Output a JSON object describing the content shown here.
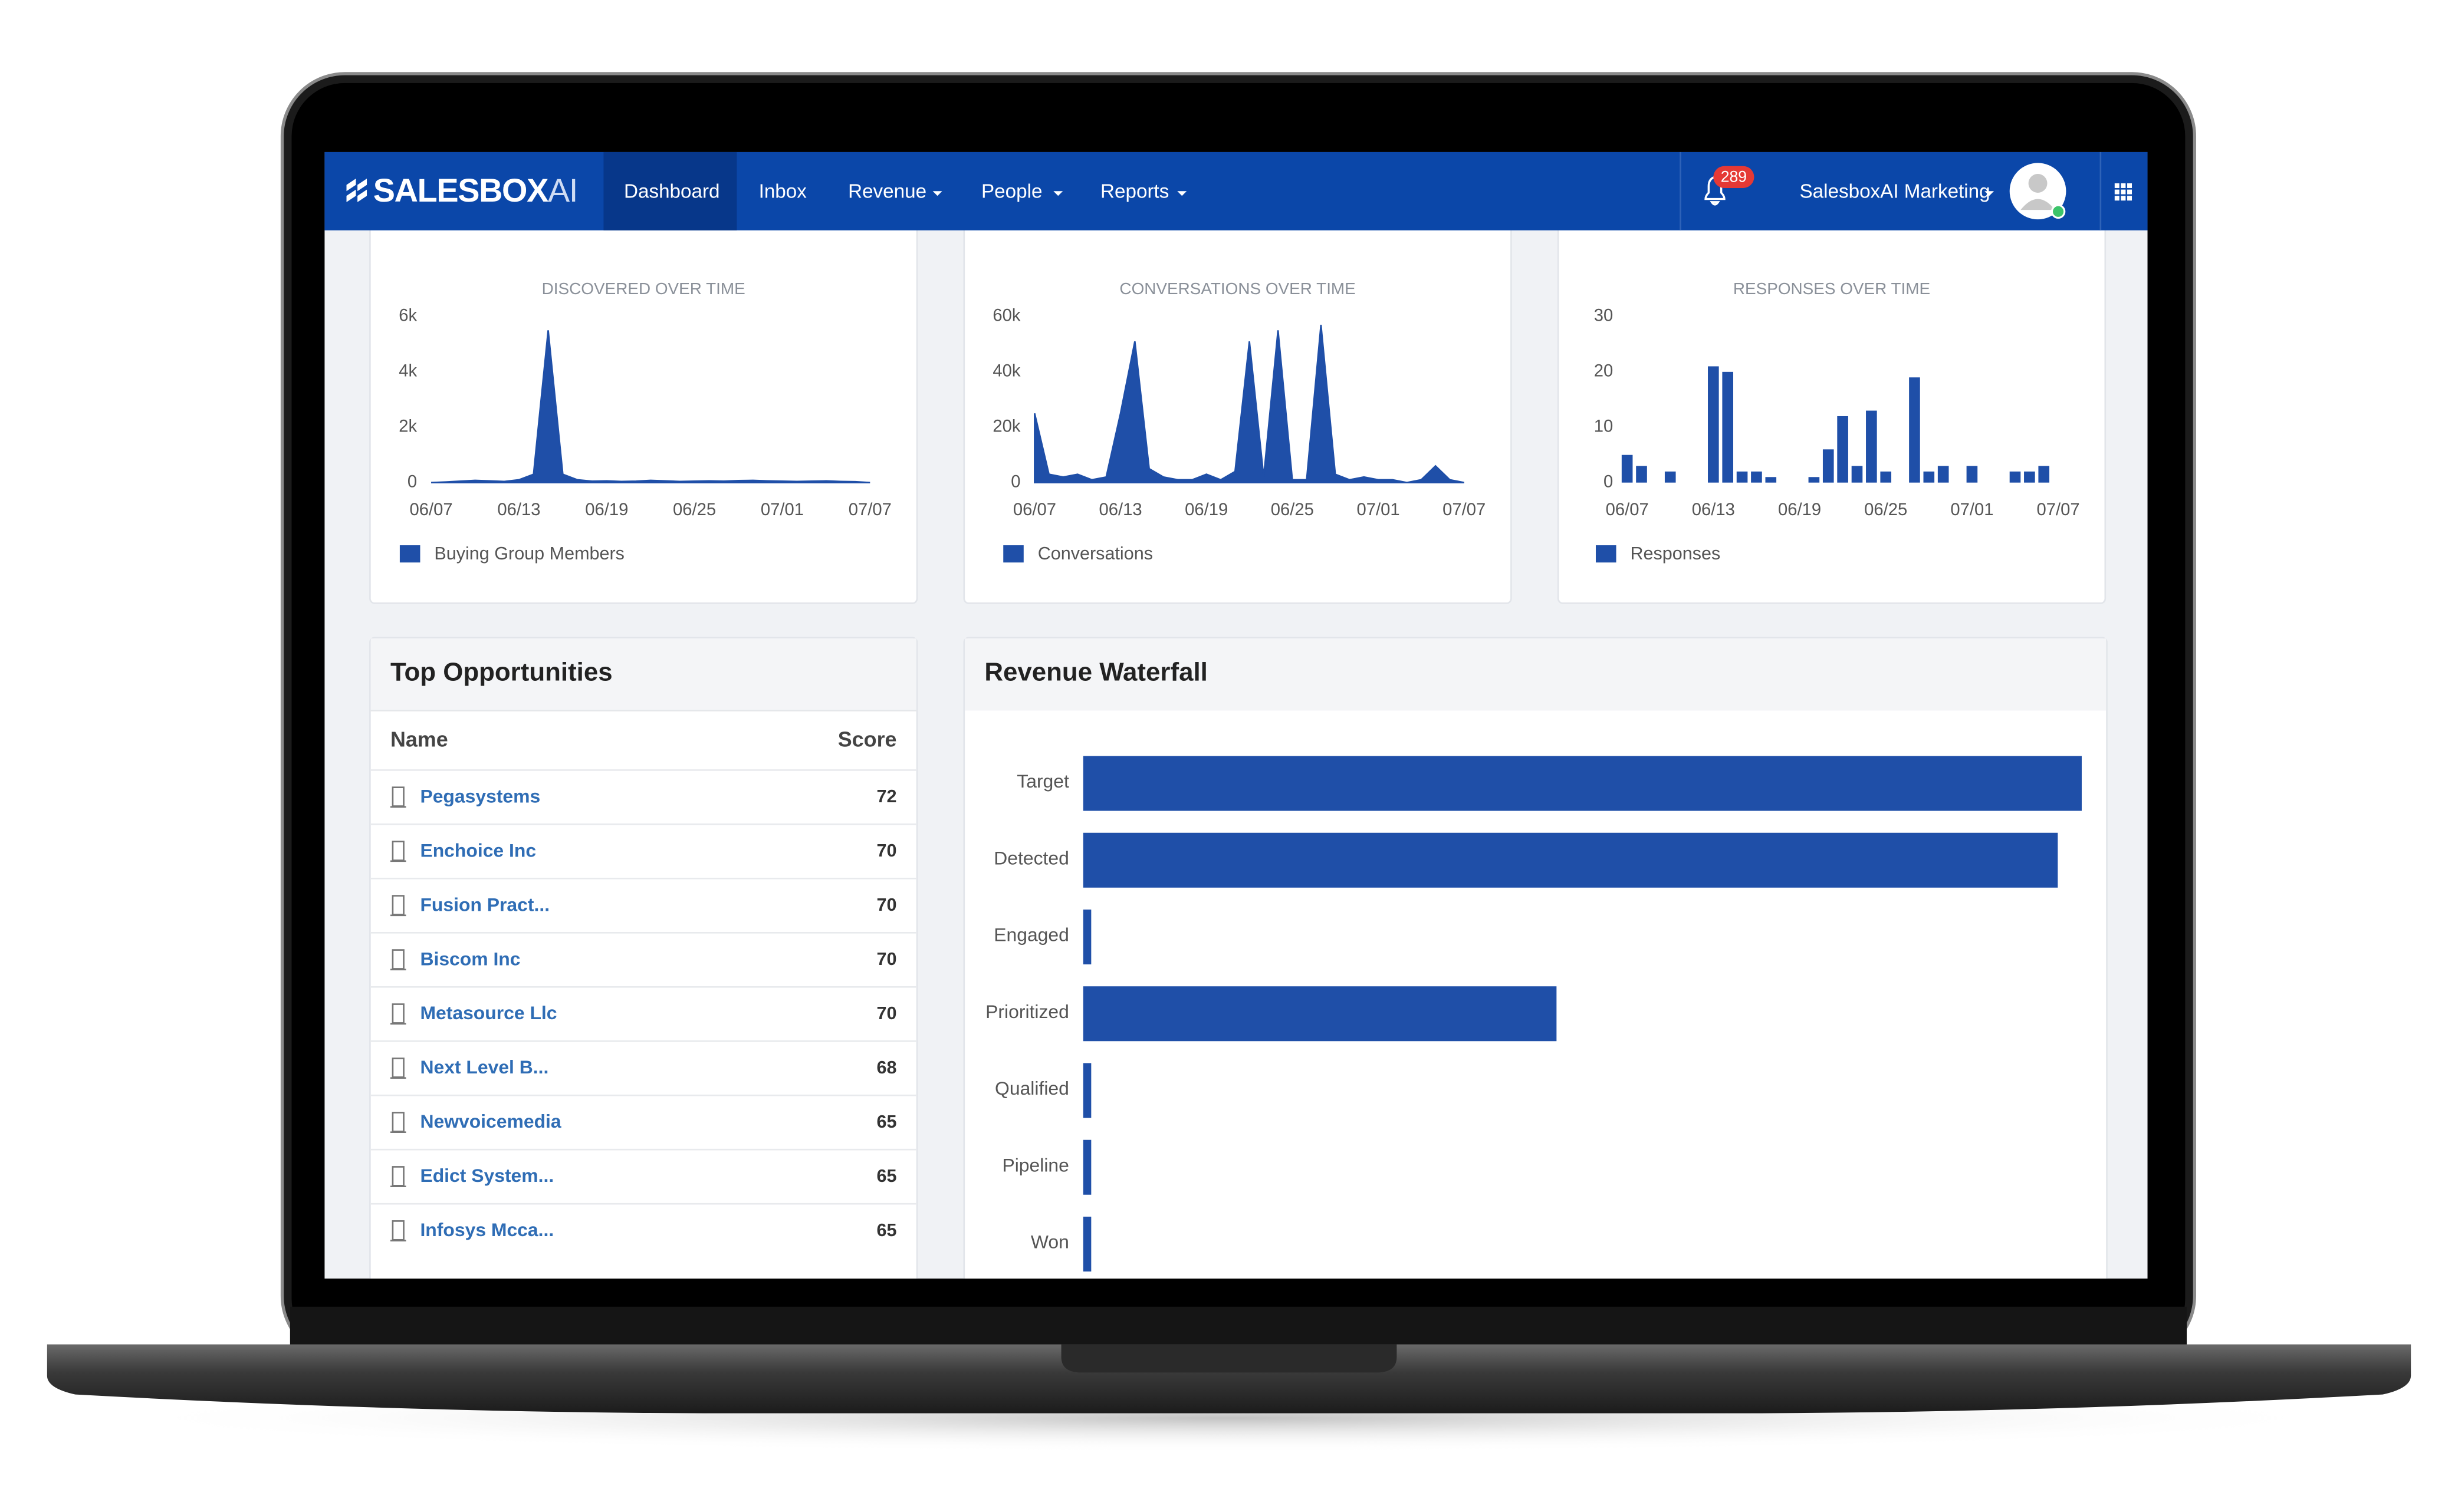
{
  "nav": {
    "logo": "SALESBOX",
    "logo_accent": "AI",
    "items": [
      "Dashboard",
      "Inbox",
      "Revenue",
      "People",
      "Reports"
    ],
    "notifications": 289,
    "user": "SalesboxAI Marketing"
  },
  "charts": [
    {
      "type": "area",
      "title": "DISCOVERED OVER TIME",
      "ylim": [
        0,
        6000
      ],
      "yticks": [
        0,
        {
          "value": 2000,
          "label": "2k"
        },
        {
          "value": 4000,
          "label": "4k"
        },
        {
          "value": 6000,
          "label": "6k"
        }
      ],
      "categories": [
        "06/07",
        null,
        null,
        null,
        null,
        null,
        "06/13",
        null,
        null,
        null,
        null,
        null,
        "06/19",
        null,
        null,
        null,
        null,
        null,
        "06/25",
        null,
        null,
        null,
        null,
        null,
        "07/01",
        null,
        null,
        null,
        null,
        null,
        "07/07"
      ],
      "series": [
        {
          "name": "Buying Group Members",
          "color": "#1f4fa8",
          "values": [
            0,
            20,
            50,
            80,
            60,
            40,
            100,
            300,
            5500,
            300,
            100,
            50,
            60,
            40,
            50,
            80,
            60,
            40,
            50,
            60,
            50,
            70,
            80,
            60,
            50,
            40,
            50,
            60,
            40,
            30,
            0
          ]
        }
      ]
    },
    {
      "type": "area",
      "title": "CONVERSATIONS OVER TIME",
      "ylim": [
        0,
        60000
      ],
      "yticks": [
        0,
        {
          "value": 20000,
          "label": "20k"
        },
        {
          "value": 40000,
          "label": "40k"
        },
        {
          "value": 60000,
          "label": "60k"
        }
      ],
      "categories": [
        "06/07",
        null,
        null,
        null,
        null,
        null,
        "06/13",
        null,
        null,
        null,
        null,
        null,
        "06/19",
        null,
        null,
        null,
        null,
        null,
        "06/25",
        null,
        null,
        null,
        null,
        null,
        "07/01",
        null,
        null,
        null,
        null,
        null,
        "07/07"
      ],
      "series": [
        {
          "name": "Conversations",
          "color": "#1f4fa8",
          "values": [
            25000,
            3000,
            2000,
            3000,
            1000,
            2000,
            25000,
            51000,
            5000,
            2000,
            1000,
            1000,
            3000,
            1000,
            4000,
            51000,
            2000,
            55000,
            1000,
            1000,
            57000,
            3000,
            1000,
            2000,
            1000,
            1000,
            0,
            1000,
            6000,
            1000,
            0
          ]
        }
      ]
    },
    {
      "type": "bar",
      "title": "RESPONSES OVER TIME",
      "ylim": [
        0,
        30
      ],
      "yticks": [
        0,
        10,
        20,
        30
      ],
      "categories": [
        "06/07",
        null,
        null,
        null,
        null,
        null,
        "06/13",
        null,
        null,
        null,
        null,
        null,
        "06/19",
        null,
        null,
        null,
        null,
        null,
        "06/25",
        null,
        null,
        null,
        null,
        null,
        "07/01",
        null,
        null,
        null,
        null,
        null,
        "07/07"
      ],
      "series": [
        {
          "name": "Responses",
          "color": "#1f4fa8",
          "values": [
            5,
            3,
            0,
            2,
            0,
            0,
            21,
            20,
            2,
            2,
            1,
            0,
            0,
            1,
            6,
            12,
            3,
            13,
            2,
            0,
            19,
            2,
            3,
            0,
            3,
            0,
            0,
            2,
            2,
            3,
            0
          ]
        }
      ]
    }
  ],
  "top_opportunities": {
    "title": "Top Opportunities",
    "columns": [
      "Name",
      "Score"
    ],
    "rows": [
      [
        "Pegasystems",
        72
      ],
      [
        "Enchoice Inc",
        70
      ],
      [
        "Fusion Pract...",
        70
      ],
      [
        "Biscom Inc",
        70
      ],
      [
        "Metasource Llc",
        70
      ],
      [
        "Next Level B...",
        68
      ],
      [
        "Newvoicemedia",
        65
      ],
      [
        "Edict System...",
        65
      ],
      [
        "Infosys Mcca...",
        65
      ]
    ]
  },
  "revenue_waterfall": {
    "type": "bar",
    "title": "Revenue Waterfall",
    "color": "#1f4fa8",
    "categories": [
      "Target",
      "Detected",
      "Engaged",
      "Prioritized",
      "Qualified",
      "Pipeline",
      "Won"
    ],
    "values": [
      100,
      97.6,
      0.8,
      47.4,
      0.8,
      0.8,
      0.8
    ]
  }
}
